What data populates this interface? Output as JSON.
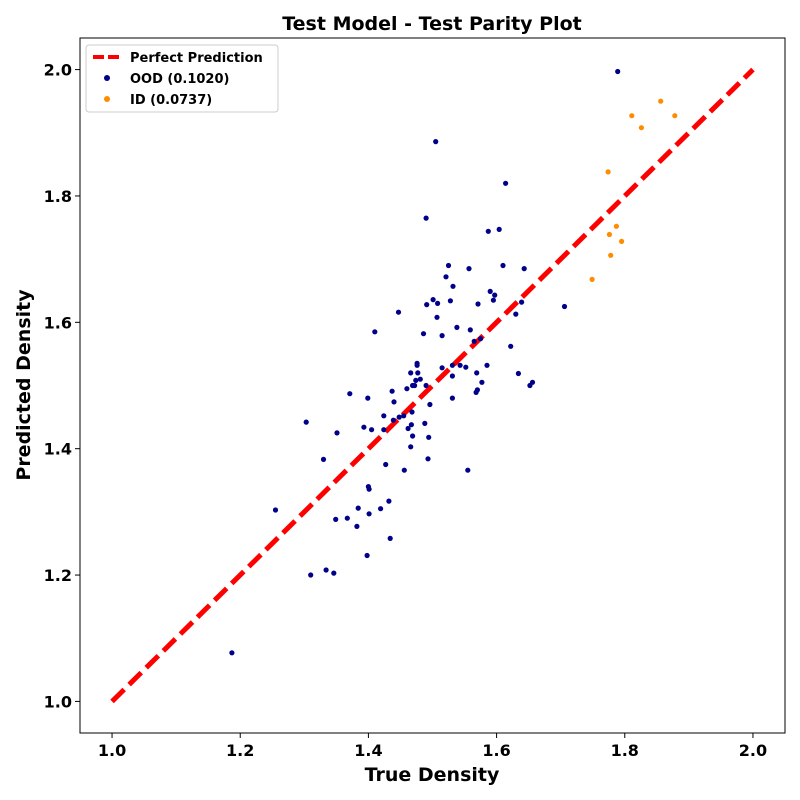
{
  "chart_data": {
    "type": "scatter",
    "title": "Test Model - Test Parity Plot",
    "xlabel": "True Density",
    "ylabel": "Predicted Density",
    "xlim": [
      0.95,
      2.05
    ],
    "ylim": [
      0.95,
      2.05
    ],
    "xticks": [
      "1.0",
      "1.2",
      "1.4",
      "1.6",
      "1.8",
      "2.0"
    ],
    "yticks": [
      "1.0",
      "1.2",
      "1.4",
      "1.6",
      "1.8",
      "2.0"
    ],
    "legend_position": "top-left",
    "grid": false,
    "reference_line": {
      "name": "Perfect Prediction",
      "x": [
        1.0,
        2.0
      ],
      "y": [
        1.0,
        2.0
      ],
      "color": "#ff0000",
      "style": "dashed"
    },
    "series": [
      {
        "name": "OOD (0.1020)",
        "color": "#00008b",
        "points": [
          [
            1.187,
            1.077
          ],
          [
            1.255,
            1.303
          ],
          [
            1.303,
            1.442
          ],
          [
            1.31,
            1.2
          ],
          [
            1.33,
            1.383
          ],
          [
            1.334,
            1.208
          ],
          [
            1.346,
            1.203
          ],
          [
            1.349,
            1.288
          ],
          [
            1.351,
            1.425
          ],
          [
            1.367,
            1.29
          ],
          [
            1.371,
            1.487
          ],
          [
            1.384,
            1.306
          ],
          [
            1.382,
            1.277
          ],
          [
            1.393,
            1.434
          ],
          [
            1.398,
            1.231
          ],
          [
            1.399,
            1.48
          ],
          [
            1.4,
            1.34
          ],
          [
            1.401,
            1.297
          ],
          [
            1.401,
            1.336
          ],
          [
            1.405,
            1.43
          ],
          [
            1.41,
            1.585
          ],
          [
            1.419,
            1.305
          ],
          [
            1.424,
            1.452
          ],
          [
            1.424,
            1.43
          ],
          [
            1.427,
            1.375
          ],
          [
            1.432,
            1.317
          ],
          [
            1.434,
            1.258
          ],
          [
            1.437,
            1.491
          ],
          [
            1.439,
            1.445
          ],
          [
            1.44,
            1.474
          ],
          [
            1.447,
            1.616
          ],
          [
            1.448,
            1.45
          ],
          [
            1.455,
            1.452
          ],
          [
            1.456,
            1.366
          ],
          [
            1.46,
            1.495
          ],
          [
            1.462,
            1.432
          ],
          [
            1.466,
            1.403
          ],
          [
            1.466,
            1.52
          ],
          [
            1.467,
            1.438
          ],
          [
            1.469,
            1.5
          ],
          [
            1.468,
            1.458
          ],
          [
            1.469,
            1.42
          ],
          [
            1.472,
            1.5
          ],
          [
            1.474,
            1.508
          ],
          [
            1.476,
            1.532
          ],
          [
            1.476,
            1.535
          ],
          [
            1.477,
            1.52
          ],
          [
            1.481,
            1.51
          ],
          [
            1.486,
            1.582
          ],
          [
            1.488,
            1.44
          ],
          [
            1.49,
            1.765
          ],
          [
            1.49,
            1.5
          ],
          [
            1.491,
            1.628
          ],
          [
            1.493,
            1.384
          ],
          [
            1.494,
            1.418
          ],
          [
            1.496,
            1.47
          ],
          [
            1.501,
            1.636
          ],
          [
            1.505,
            1.886
          ],
          [
            1.507,
            1.608
          ],
          [
            1.508,
            1.63
          ],
          [
            1.515,
            1.579
          ],
          [
            1.515,
            1.528
          ],
          [
            1.521,
            1.672
          ],
          [
            1.525,
            1.69
          ],
          [
            1.528,
            1.634
          ],
          [
            1.531,
            1.48
          ],
          [
            1.531,
            1.515
          ],
          [
            1.531,
            1.532
          ],
          [
            1.532,
            1.657
          ],
          [
            1.538,
            1.592
          ],
          [
            1.543,
            1.532
          ],
          [
            1.552,
            1.529
          ],
          [
            1.555,
            1.366
          ],
          [
            1.557,
            1.685
          ],
          [
            1.559,
            1.588
          ],
          [
            1.565,
            1.57
          ],
          [
            1.568,
            1.489
          ],
          [
            1.569,
            1.52
          ],
          [
            1.57,
            1.493
          ],
          [
            1.571,
            1.629
          ],
          [
            1.575,
            1.574
          ],
          [
            1.577,
            1.505
          ],
          [
            1.585,
            1.532
          ],
          [
            1.587,
            1.744
          ],
          [
            1.59,
            1.649
          ],
          [
            1.595,
            1.635
          ],
          [
            1.597,
            1.643
          ],
          [
            1.604,
            1.747
          ],
          [
            1.61,
            1.69
          ],
          [
            1.614,
            1.82
          ],
          [
            1.622,
            1.562
          ],
          [
            1.63,
            1.613
          ],
          [
            1.634,
            1.519
          ],
          [
            1.639,
            1.632
          ],
          [
            1.643,
            1.685
          ],
          [
            1.652,
            1.5
          ],
          [
            1.656,
            1.505
          ],
          [
            1.706,
            1.625
          ],
          [
            1.789,
            1.997
          ]
        ]
      },
      {
        "name": "ID (0.0737)",
        "color": "#ff8c00",
        "points": [
          [
            1.749,
            1.668
          ],
          [
            1.774,
            1.838
          ],
          [
            1.776,
            1.739
          ],
          [
            1.778,
            1.706
          ],
          [
            1.787,
            1.752
          ],
          [
            1.795,
            1.728
          ],
          [
            1.811,
            1.927
          ],
          [
            1.826,
            1.908
          ],
          [
            1.856,
            1.95
          ],
          [
            1.878,
            1.927
          ]
        ]
      }
    ]
  }
}
